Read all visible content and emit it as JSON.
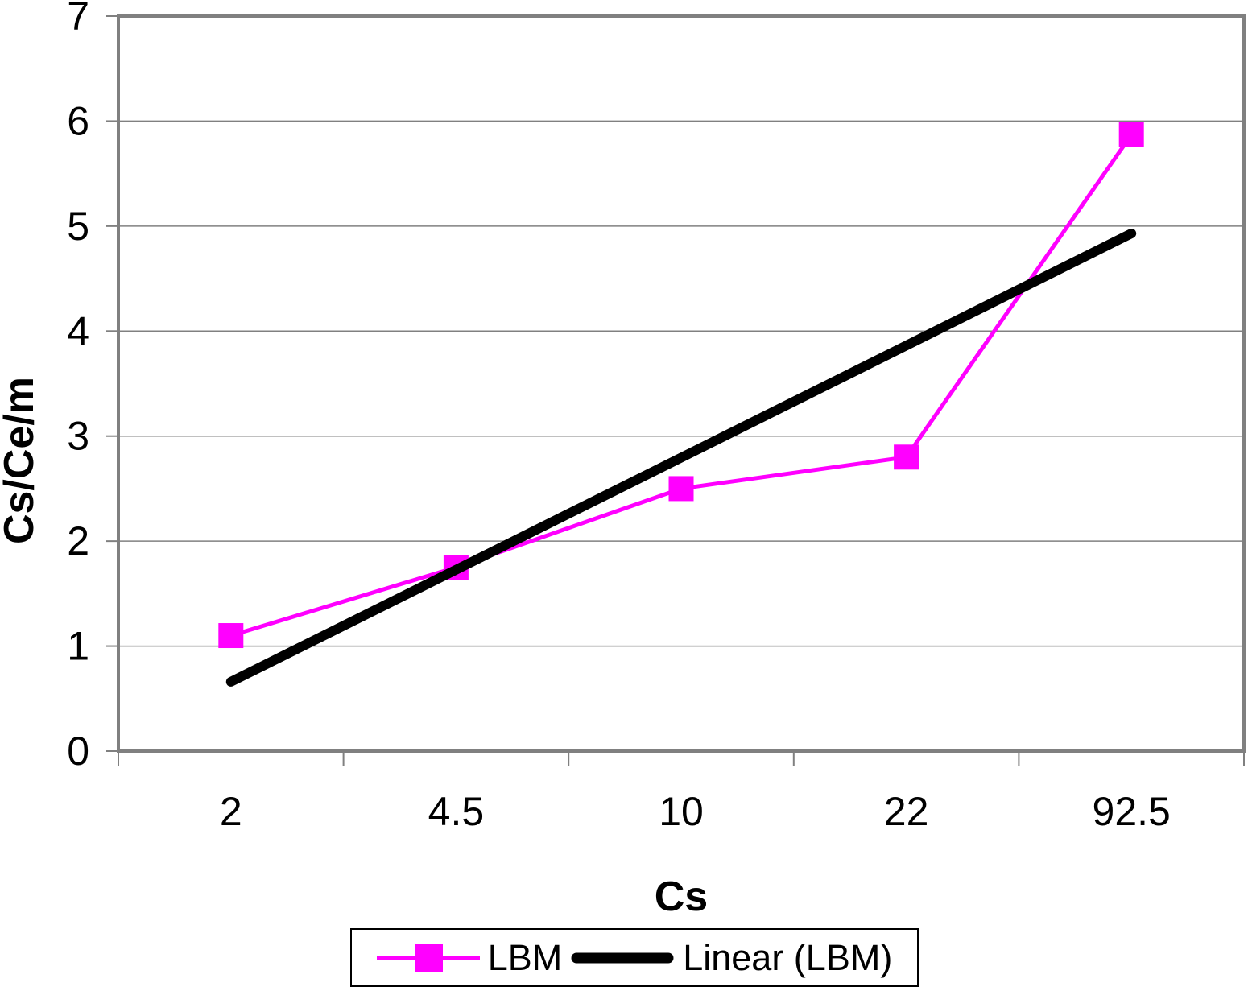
{
  "chart_data": {
    "type": "line",
    "title": "",
    "categories": [
      "2",
      "4.5",
      "10",
      "22",
      "92.5"
    ],
    "series": [
      {
        "name": "LBM",
        "values": [
          1.1,
          1.75,
          2.5,
          2.8,
          5.87
        ],
        "color": "#FF00FF",
        "marker": "square",
        "line_width": 5
      },
      {
        "name": "Linear (LBM)",
        "values": [
          0.66,
          1.73,
          2.79,
          3.86,
          4.93
        ],
        "color": "#000000",
        "style": "trendline",
        "line_width": 12
      }
    ],
    "xlabel": "Cs",
    "ylabel": "Cs/Ce/m",
    "ylim": [
      0,
      7
    ],
    "yticks": [
      "0",
      "1",
      "2",
      "3",
      "4",
      "5",
      "6",
      "7"
    ],
    "grid": "horizontal",
    "gridline_color": "#808080",
    "axis_color": "#808080",
    "legend_position": "bottom",
    "legend_entries": [
      "LBM",
      "Linear (LBM)"
    ]
  }
}
